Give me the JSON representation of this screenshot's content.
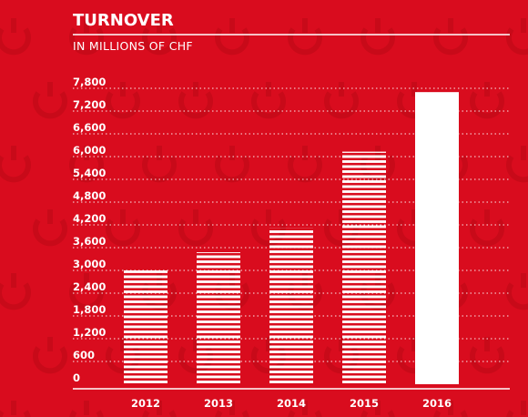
{
  "header": {
    "title": "TURNOVER",
    "subtitle": "IN MILLIONS OF CHF"
  },
  "colors": {
    "background": "#d90c1e",
    "watermark": "#c80a19",
    "bars": "#ffffff"
  },
  "chart_data": {
    "type": "bar",
    "title": "TURNOVER",
    "subtitle": "IN MILLIONS OF CHF",
    "xlabel": "",
    "ylabel": "",
    "categories": [
      "2012",
      "2013",
      "2014",
      "2015",
      "2016"
    ],
    "values": [
      3060,
      3480,
      4120,
      6130,
      7700
    ],
    "bar_styles": [
      "striped",
      "striped",
      "striped",
      "striped",
      "solid"
    ],
    "ylim": [
      0,
      7800
    ],
    "yticks": [
      0,
      600,
      1200,
      1800,
      2400,
      3000,
      3600,
      4200,
      4800,
      5400,
      6000,
      6600,
      7200,
      7800
    ],
    "ytick_labels": [
      "0",
      "600",
      "1,200",
      "1,800",
      "2,400",
      "3,000",
      "3,600",
      "4,200",
      "4,800",
      "5,400",
      "6,000",
      "6,600",
      "7,200",
      "7,800"
    ],
    "grid": true,
    "legend": "none"
  }
}
